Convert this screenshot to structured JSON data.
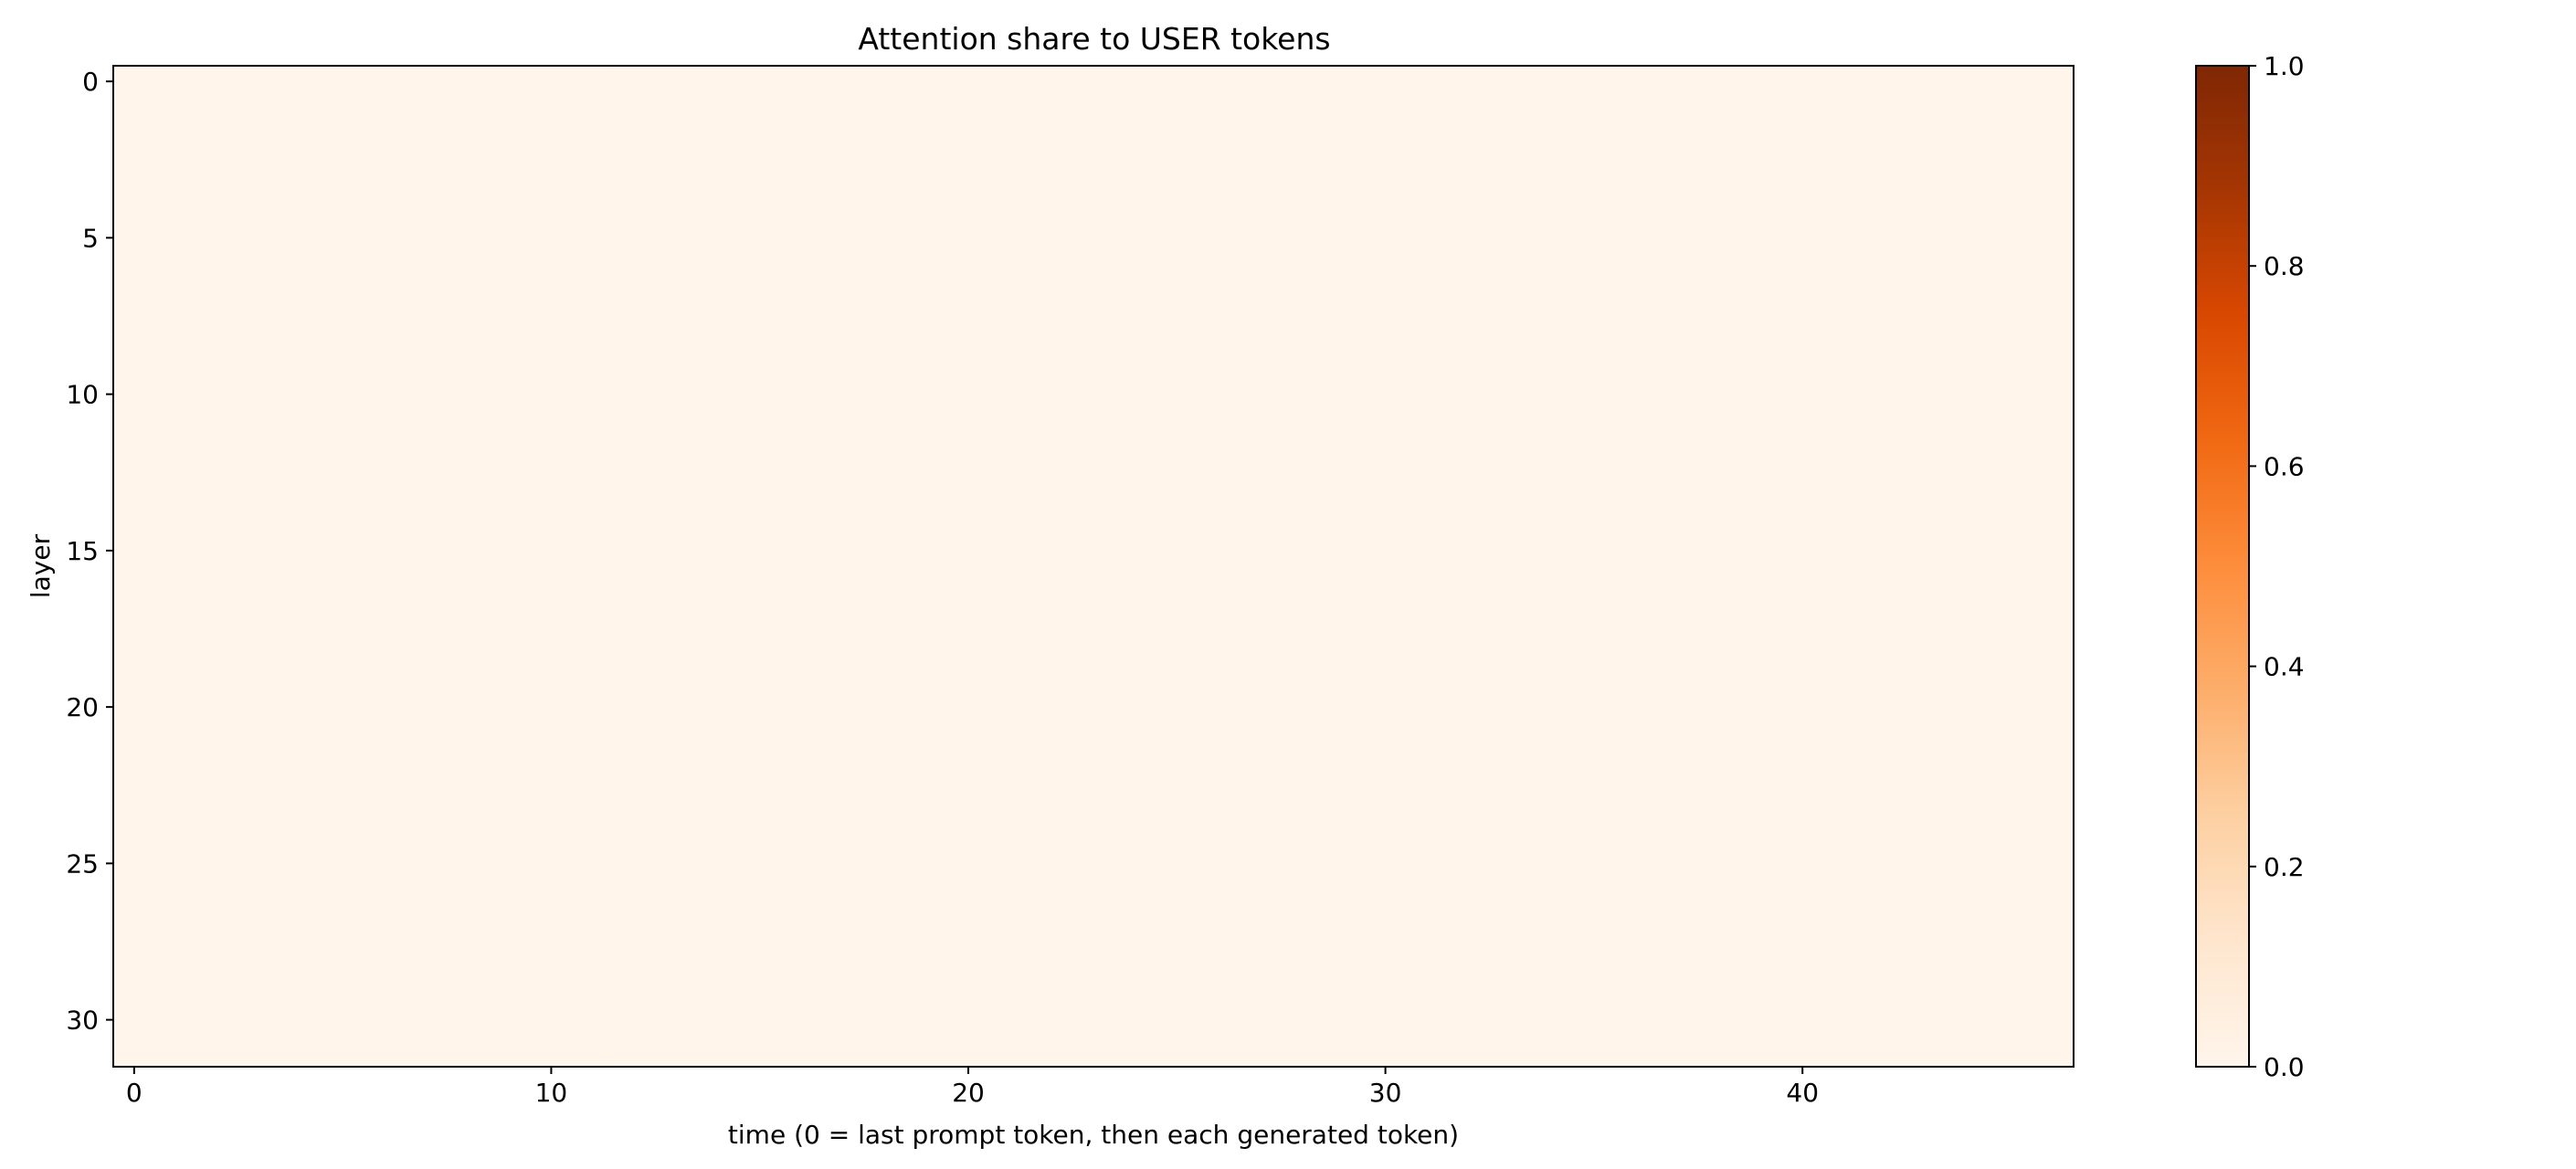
{
  "chart_data": {
    "type": "heatmap",
    "title": "Attention share to USER tokens",
    "xlabel": "time (0 = last prompt token, then each generated token)",
    "ylabel": "layer",
    "x_range": [
      -0.5,
      46.5
    ],
    "y_range": [
      -0.5,
      31.5
    ],
    "y_inverted": true,
    "n_cols": 47,
    "n_rows": 32,
    "uniform_value": 0.0,
    "x_ticks": [
      0,
      10,
      20,
      30,
      40
    ],
    "y_ticks": [
      0,
      5,
      10,
      15,
      20,
      25,
      30
    ],
    "colorbar": {
      "colormap": "Oranges",
      "vmin": 0.0,
      "vmax": 1.0,
      "ticks": [
        0.0,
        0.2,
        0.4,
        0.6,
        0.8,
        1.0
      ],
      "tick_labels": [
        "0.0",
        "0.2",
        "0.4",
        "0.6",
        "0.8",
        "1.0"
      ]
    },
    "colors": {
      "low": "#fff5eb",
      "high": "#7f2704"
    },
    "grid": false
  }
}
